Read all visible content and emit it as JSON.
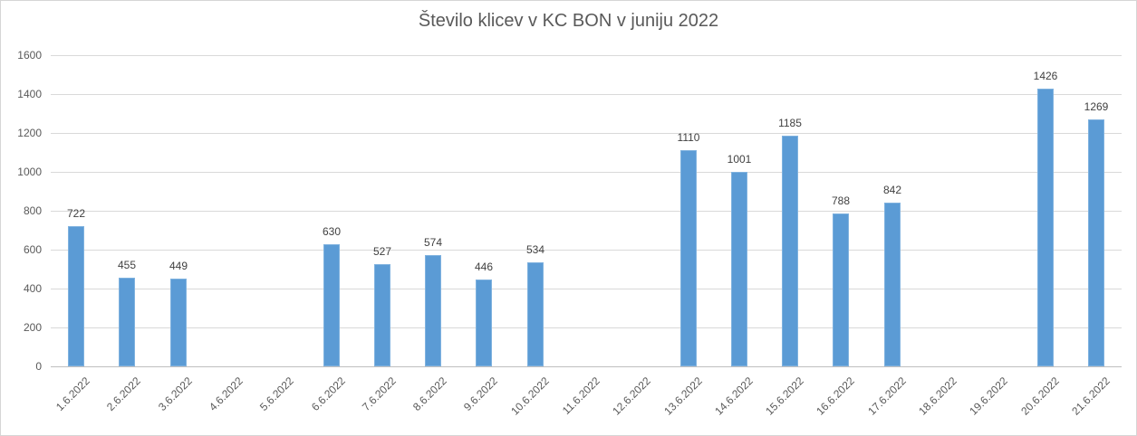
{
  "chart_data": {
    "type": "bar",
    "title": "Število klicev v KC BON v juniju 2022",
    "categories": [
      "1.6.2022",
      "2.6.2022",
      "3.6.2022",
      "4.6.2022",
      "5.6.2022",
      "6.6.2022",
      "7.6.2022",
      "8.6.2022",
      "9.6.2022",
      "10.6.2022",
      "11.6.2022",
      "12.6.2022",
      "13.6.2022",
      "14.6.2022",
      "15.6.2022",
      "16.6.2022",
      "17.6.2022",
      "18.6.2022",
      "19.6.2022",
      "20.6.2022",
      "21.6.2022"
    ],
    "values": [
      722,
      455,
      449,
      null,
      null,
      630,
      527,
      574,
      446,
      534,
      null,
      null,
      1110,
      1001,
      1185,
      788,
      842,
      null,
      null,
      1426,
      1269
    ],
    "xlabel": "",
    "ylabel": "",
    "ylim": [
      0,
      1600
    ],
    "ytick_interval": 200,
    "ytick_labels": [
      "0",
      "200",
      "400",
      "600",
      "800",
      "1000",
      "1200",
      "1400",
      "1600"
    ],
    "grid": true,
    "legend": false,
    "data_labels": true,
    "colors": {
      "bar_fill": "#5b9bd5",
      "bar_border": "#7fb2df",
      "data_label": "#404040",
      "axis_text": "#595959",
      "gridline": "#d9d9d9",
      "title_text": "#595959"
    }
  }
}
